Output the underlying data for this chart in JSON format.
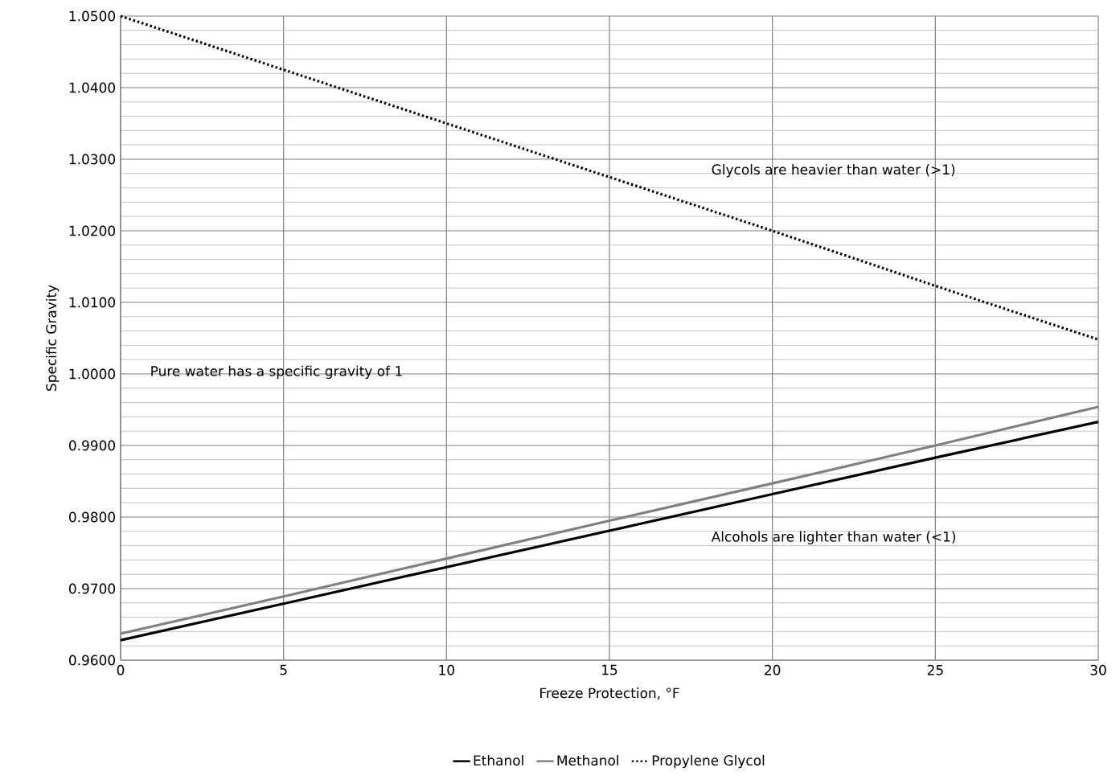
{
  "chart_data": {
    "type": "line",
    "xlabel": "Freeze Protection, °F",
    "ylabel": "Specific Gravity",
    "x": [
      0,
      5,
      10,
      15,
      20,
      25,
      30
    ],
    "series": [
      {
        "name": "Ethanol",
        "color": "#000000",
        "line_style": "solid",
        "values": [
          0.9628,
          0.9679,
          0.973,
          0.9781,
          0.9832,
          0.9883,
          0.9933
        ]
      },
      {
        "name": "Methanol",
        "color": "#808080",
        "line_style": "solid",
        "values": [
          0.9637,
          0.9689,
          0.9742,
          0.9795,
          0.9847,
          0.99,
          0.9954
        ]
      },
      {
        "name": "Propylene Glycol",
        "color": "#000000",
        "line_style": "dotted",
        "values": [
          1.05,
          1.0425,
          1.035,
          1.0275,
          1.02,
          1.0123,
          1.0048
        ]
      }
    ],
    "xlim": [
      0,
      30
    ],
    "ylim": [
      0.96,
      1.05
    ],
    "xticks": [
      0,
      5,
      10,
      15,
      20,
      25,
      30
    ],
    "yticks": [
      {
        "value": 0.96,
        "label": "0.9600"
      },
      {
        "value": 0.97,
        "label": "0.9700"
      },
      {
        "value": 0.98,
        "label": "0.9800"
      },
      {
        "value": 0.99,
        "label": "0.9900"
      },
      {
        "value": 1.0,
        "label": "1.0000"
      },
      {
        "value": 1.01,
        "label": "1.0100"
      },
      {
        "value": 1.02,
        "label": "1.0200"
      },
      {
        "value": 1.03,
        "label": "1.0300"
      },
      {
        "value": 1.04,
        "label": "1.0400"
      },
      {
        "value": 1.05,
        "label": "1.0500"
      }
    ],
    "annotations": [
      "Glycols are heavier than water (>1)",
      "Alcohols are lighter than water (<1)",
      "Pure water has a specific gravity of 1"
    ],
    "grid": true,
    "legend": "bottom",
    "marker": "none"
  }
}
